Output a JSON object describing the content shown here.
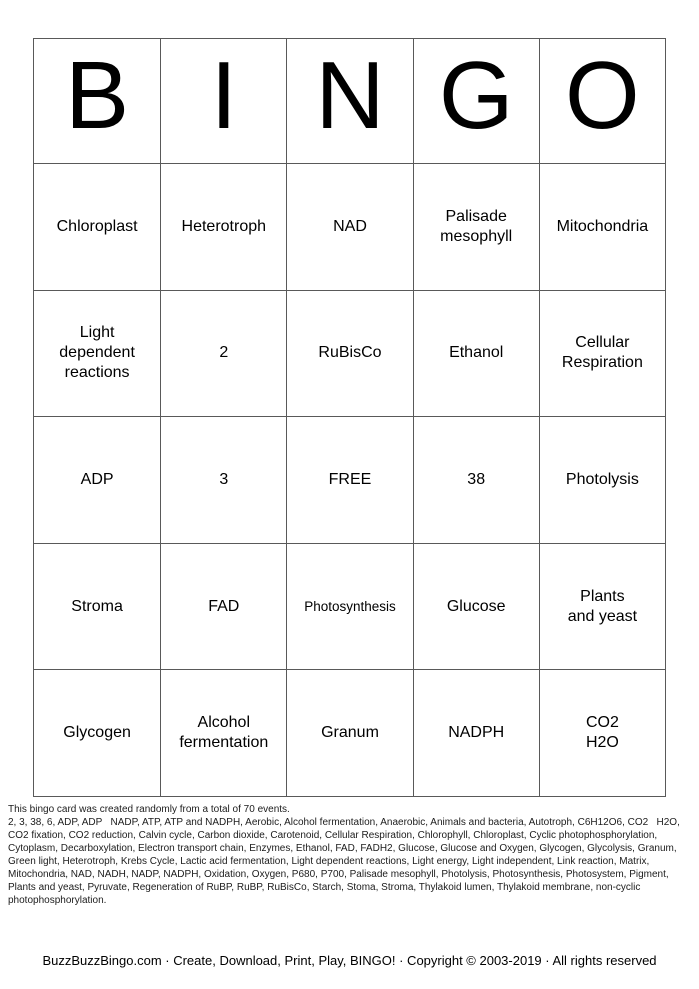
{
  "colors": {
    "bg": "#ffffff",
    "line": "#595959",
    "ink": "#000000",
    "fine": "#1c1c1c"
  },
  "header": {
    "letters": [
      "B",
      "I",
      "N",
      "G",
      "O"
    ]
  },
  "grid": {
    "rows": [
      [
        "Chloroplast",
        "Heterotroph",
        "NAD",
        "Palisade\nmesophyll",
        "Mitochondria"
      ],
      [
        "Light\ndependent\nreactions",
        "2",
        "RuBisCo",
        "Ethanol",
        "Cellular\nRespiration"
      ],
      [
        "ADP",
        "3",
        "FREE",
        "38",
        "Photolysis"
      ],
      [
        "Stroma",
        "FAD",
        "Photosynthesis",
        "Glucose",
        "Plants\nand yeast"
      ],
      [
        "Glycogen",
        "Alcohol\nfermentation",
        "Granum",
        "NADPH",
        "CO2\nH2O"
      ]
    ],
    "free_cell_label": "FREE"
  },
  "footer": {
    "note": "This bingo card was created randomly from a total of 70 events.",
    "events": "2, 3, 38, 6, ADP, ADP   NADP, ATP, ATP and NADPH, Aerobic, Alcohol fermentation, Anaerobic, Animals and bacteria, Autotroph, C6H12O6, CO2   H2O, CO2 fixation, CO2 reduction, Calvin cycle, Carbon dioxide, Carotenoid, Cellular Respiration, Chlorophyll, Chloroplast, Cyclic photophosphorylation, Cytoplasm, Decarboxylation, Electron transport chain, Enzymes, Ethanol, FAD, FADH2, Glucose, Glucose and Oxygen, Glycogen, Glycolysis, Granum, Green light, Heterotroph, Krebs Cycle, Lactic acid fermentation, Light dependent reactions, Light energy, Light independent, Link reaction, Matrix, Mitochondria, NAD, NADH, NADP, NADPH, Oxidation, Oxygen, P680, P700, Palisade mesophyll, Photolysis, Photosynthesis, Photosystem, Pigment, Plants and yeast, Pyruvate, Regeneration of RuBP, RuBP, RuBisCo, Starch, Stoma, Stroma, Thylakoid lumen, Thylakoid membrane, non-cyclic photophosphorylation."
  },
  "credit": {
    "line": "BuzzBuzzBingo.com · Create, Download, Print, Play, BINGO! · Copyright © 2003-2019 · All rights reserved"
  }
}
